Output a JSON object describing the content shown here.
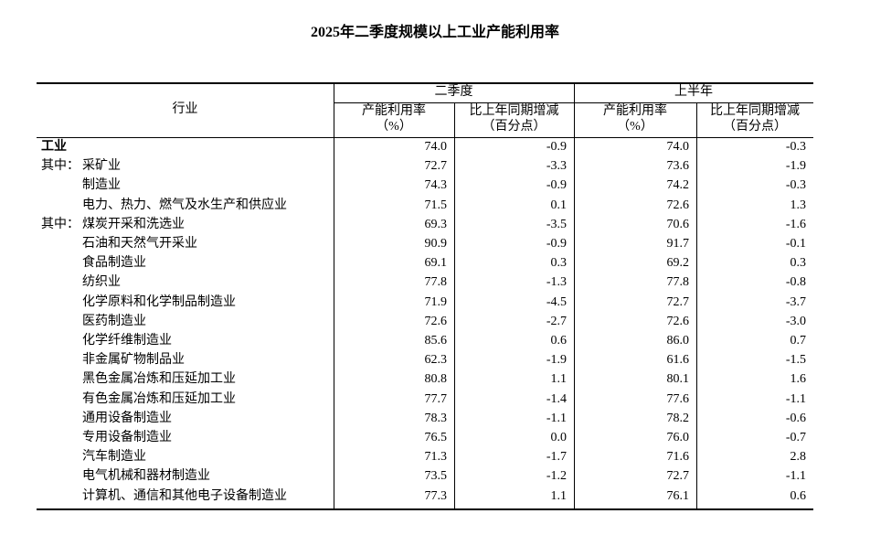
{
  "title": "2025年二季度规模以上工业产能利用率",
  "header": {
    "row_label": "行业",
    "groups": [
      {
        "name": "二季度",
        "columns": [
          [
            "产能利用率",
            "（%）"
          ],
          [
            "比上年同期增减",
            "（百分点）"
          ]
        ]
      },
      {
        "name": "上半年",
        "columns": [
          [
            "产能利用率",
            "（%）"
          ],
          [
            "比上年同期增减",
            "（百分点）"
          ]
        ]
      }
    ]
  },
  "rows": [
    {
      "name": "工业",
      "cells": [
        "74.0",
        "-0.9",
        "74.0",
        "-0.3"
      ]
    },
    {
      "prefix": "其中：",
      "name": "采矿业",
      "cells": [
        "72.7",
        "-3.3",
        "73.6",
        "-1.9"
      ]
    },
    {
      "name": "制造业",
      "cells": [
        "74.3",
        "-0.9",
        "74.2",
        "-0.3"
      ]
    },
    {
      "name": "电力、热力、燃气及水生产和供应业",
      "cells": [
        "71.5",
        "0.1",
        "72.6",
        "1.3"
      ]
    },
    {
      "prefix": "其中：",
      "name": "煤炭开采和洗选业",
      "cells": [
        "69.3",
        "-3.5",
        "70.6",
        "-1.6"
      ]
    },
    {
      "name": "石油和天然气开采业",
      "cells": [
        "90.9",
        "-0.9",
        "91.7",
        "-0.1"
      ]
    },
    {
      "name": "食品制造业",
      "cells": [
        "69.1",
        "0.3",
        "69.2",
        "0.3"
      ]
    },
    {
      "name": "纺织业",
      "cells": [
        "77.8",
        "-1.3",
        "77.8",
        "-0.8"
      ]
    },
    {
      "name": "化学原料和化学制品制造业",
      "cells": [
        "71.9",
        "-4.5",
        "72.7",
        "-3.7"
      ]
    },
    {
      "name": "医药制造业",
      "cells": [
        "72.6",
        "-2.7",
        "72.6",
        "-3.0"
      ]
    },
    {
      "name": "化学纤维制造业",
      "cells": [
        "85.6",
        "0.6",
        "86.0",
        "0.7"
      ]
    },
    {
      "name": "非金属矿物制品业",
      "cells": [
        "62.3",
        "-1.9",
        "61.6",
        "-1.5"
      ]
    },
    {
      "name": "黑色金属冶炼和压延加工业",
      "cells": [
        "80.8",
        "1.1",
        "80.1",
        "1.6"
      ]
    },
    {
      "name": "有色金属冶炼和压延加工业",
      "cells": [
        "77.7",
        "-1.4",
        "77.6",
        "-1.1"
      ]
    },
    {
      "name": "通用设备制造业",
      "cells": [
        "78.3",
        "-1.1",
        "78.2",
        "-0.6"
      ]
    },
    {
      "name": "专用设备制造业",
      "cells": [
        "76.5",
        "0.0",
        "76.0",
        "-0.7"
      ]
    },
    {
      "name": "汽车制造业",
      "cells": [
        "71.3",
        "-1.7",
        "71.6",
        "2.8"
      ]
    },
    {
      "name": "电气机械和器材制造业",
      "cells": [
        "73.5",
        "-1.2",
        "72.7",
        "-1.1"
      ]
    },
    {
      "name": "计算机、通信和其他电子设备制造业",
      "cells": [
        "77.3",
        "1.1",
        "76.1",
        "0.6"
      ]
    }
  ]
}
